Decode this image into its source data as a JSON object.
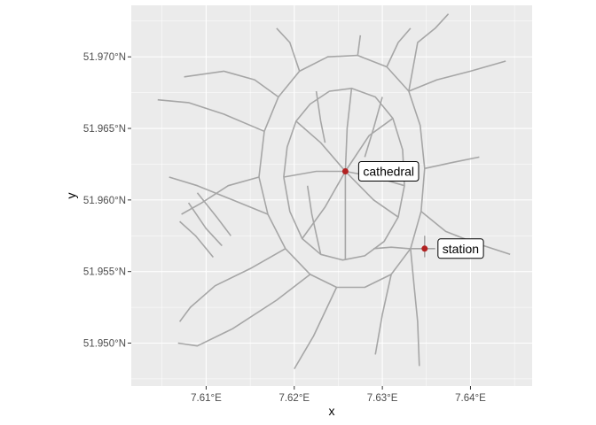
{
  "chart_data": {
    "type": "map",
    "xlabel": "x",
    "ylabel": "y",
    "xlim": [
      7.6015,
      7.647
    ],
    "ylim": [
      51.947,
      51.9736
    ],
    "x_ticks": [
      {
        "value": 7.61,
        "label": "7.61°E"
      },
      {
        "value": 7.62,
        "label": "7.62°E"
      },
      {
        "value": 7.63,
        "label": "7.63°E"
      },
      {
        "value": 7.64,
        "label": "7.64°E"
      }
    ],
    "y_ticks": [
      {
        "value": 51.95,
        "label": "51.950°N"
      },
      {
        "value": 51.955,
        "label": "51.955°N"
      },
      {
        "value": 51.96,
        "label": "51.960°N"
      },
      {
        "value": 51.965,
        "label": "51.965°N"
      },
      {
        "value": 51.97,
        "label": "51.970°N"
      }
    ],
    "grid": true,
    "panel_color": "#ebebeb",
    "grid_color": "#ffffff",
    "road_color": "#a6a6a6",
    "point_color": "#b22222",
    "points": [
      {
        "label": "cathedral",
        "lon": 7.6258,
        "lat": 51.962
      },
      {
        "label": "station",
        "lon": 7.6348,
        "lat": 51.9566
      }
    ],
    "roads": [
      [
        [
          7.6188,
          51.9616
        ],
        [
          7.6192,
          51.9637
        ],
        [
          7.6202,
          51.9655
        ],
        [
          7.6218,
          51.9667
        ],
        [
          7.624,
          51.9676
        ],
        [
          7.6265,
          51.9678
        ],
        [
          7.6292,
          51.9672
        ],
        [
          7.6312,
          51.9657
        ],
        [
          7.6323,
          51.9635
        ],
        [
          7.6325,
          51.961
        ],
        [
          7.6318,
          51.9588
        ],
        [
          7.6302,
          51.9571
        ],
        [
          7.628,
          51.9561
        ],
        [
          7.6255,
          51.9558
        ],
        [
          7.623,
          51.9562
        ],
        [
          7.6209,
          51.9573
        ],
        [
          7.6195,
          51.9592
        ],
        [
          7.6188,
          51.9616
        ]
      ],
      [
        [
          7.616,
          51.9616
        ],
        [
          7.6166,
          51.9648
        ],
        [
          7.6182,
          51.9672
        ],
        [
          7.6206,
          51.969
        ],
        [
          7.6238,
          51.97
        ],
        [
          7.6272,
          51.9701
        ],
        [
          7.6305,
          51.9693
        ],
        [
          7.633,
          51.9676
        ],
        [
          7.6343,
          51.9652
        ],
        [
          7.6348,
          51.9622
        ],
        [
          7.6344,
          51.9592
        ],
        [
          7.6332,
          51.9566
        ],
        [
          7.631,
          51.9548
        ],
        [
          7.628,
          51.9539
        ],
        [
          7.6248,
          51.9539
        ],
        [
          7.6218,
          51.9548
        ],
        [
          7.619,
          51.9566
        ],
        [
          7.617,
          51.959
        ],
        [
          7.616,
          51.9616
        ]
      ],
      [
        [
          7.633,
          51.9676
        ],
        [
          7.6362,
          51.9684
        ],
        [
          7.64,
          51.969
        ],
        [
          7.644,
          51.9697
        ]
      ],
      [
        [
          7.633,
          51.9676
        ],
        [
          7.634,
          51.971
        ],
        [
          7.636,
          51.972
        ],
        [
          7.6375,
          51.973
        ]
      ],
      [
        [
          7.6344,
          51.9592
        ],
        [
          7.6372,
          51.9578
        ],
        [
          7.6405,
          51.957
        ],
        [
          7.6445,
          51.9562
        ]
      ],
      [
        [
          7.6332,
          51.9566
        ],
        [
          7.6336,
          51.954
        ],
        [
          7.634,
          51.9515
        ],
        [
          7.6342,
          51.9484
        ]
      ],
      [
        [
          7.631,
          51.9548
        ],
        [
          7.63,
          51.952
        ],
        [
          7.6292,
          51.9492
        ]
      ],
      [
        [
          7.6248,
          51.9539
        ],
        [
          7.6222,
          51.9505
        ],
        [
          7.62,
          51.9482
        ]
      ],
      [
        [
          7.6218,
          51.9548
        ],
        [
          7.618,
          51.953
        ],
        [
          7.613,
          51.951
        ],
        [
          7.609,
          51.9498
        ],
        [
          7.6068,
          51.95
        ]
      ],
      [
        [
          7.619,
          51.9566
        ],
        [
          7.615,
          51.9552
        ],
        [
          7.611,
          51.954
        ],
        [
          7.6082,
          51.9525
        ],
        [
          7.607,
          51.9515
        ]
      ],
      [
        [
          7.617,
          51.959
        ],
        [
          7.613,
          51.96
        ],
        [
          7.609,
          51.961
        ],
        [
          7.6058,
          51.9616
        ]
      ],
      [
        [
          7.6166,
          51.9648
        ],
        [
          7.612,
          51.966
        ],
        [
          7.608,
          51.9668
        ],
        [
          7.6045,
          51.967
        ]
      ],
      [
        [
          7.6182,
          51.9672
        ],
        [
          7.6155,
          51.9684
        ],
        [
          7.612,
          51.969
        ],
        [
          7.6075,
          51.9686
        ]
      ],
      [
        [
          7.6206,
          51.969
        ],
        [
          7.6195,
          51.971
        ],
        [
          7.618,
          51.972
        ]
      ],
      [
        [
          7.6272,
          51.9701
        ],
        [
          7.6275,
          51.9715
        ]
      ],
      [
        [
          7.6305,
          51.9693
        ],
        [
          7.6318,
          51.971
        ],
        [
          7.6332,
          51.972
        ]
      ],
      [
        [
          7.6348,
          51.9622
        ],
        [
          7.6378,
          51.9626
        ],
        [
          7.641,
          51.963
        ]
      ],
      [
        [
          7.616,
          51.9616
        ],
        [
          7.6125,
          51.961
        ],
        [
          7.6095,
          51.9598
        ],
        [
          7.6072,
          51.959
        ]
      ],
      [
        [
          7.6188,
          51.9616
        ],
        [
          7.6225,
          51.962
        ],
        [
          7.6258,
          51.962
        ],
        [
          7.6292,
          51.9616
        ],
        [
          7.6325,
          51.961
        ]
      ],
      [
        [
          7.6258,
          51.9558
        ],
        [
          7.6258,
          51.959
        ],
        [
          7.6258,
          51.962
        ],
        [
          7.626,
          51.965
        ],
        [
          7.6265,
          51.9678
        ]
      ],
      [
        [
          7.6202,
          51.9655
        ],
        [
          7.623,
          51.964
        ],
        [
          7.6258,
          51.962
        ],
        [
          7.629,
          51.96
        ],
        [
          7.6318,
          51.9588
        ]
      ],
      [
        [
          7.6209,
          51.9573
        ],
        [
          7.6235,
          51.9595
        ],
        [
          7.6258,
          51.962
        ],
        [
          7.6285,
          51.9645
        ],
        [
          7.6312,
          51.9657
        ]
      ],
      [
        [
          7.629,
          51.9566
        ],
        [
          7.631,
          51.9567
        ],
        [
          7.633,
          51.9566
        ],
        [
          7.6348,
          51.9566
        ],
        [
          7.636,
          51.9566
        ]
      ],
      [
        [
          7.6348,
          51.956
        ],
        [
          7.6348,
          51.9575
        ]
      ],
      [
        [
          7.607,
          51.9585
        ],
        [
          7.6088,
          51.9575
        ],
        [
          7.6108,
          51.956
        ]
      ],
      [
        [
          7.608,
          51.9598
        ],
        [
          7.61,
          51.958
        ],
        [
          7.6118,
          51.9568
        ]
      ],
      [
        [
          7.609,
          51.9605
        ],
        [
          7.6112,
          51.9588
        ],
        [
          7.6128,
          51.9575
        ]
      ],
      [
        [
          7.6225,
          51.9676
        ],
        [
          7.623,
          51.9655
        ],
        [
          7.6235,
          51.964
        ]
      ],
      [
        [
          7.63,
          51.9672
        ],
        [
          7.629,
          51.965
        ],
        [
          7.628,
          51.963
        ]
      ],
      [
        [
          7.623,
          51.9562
        ],
        [
          7.622,
          51.959
        ],
        [
          7.6215,
          51.961
        ]
      ]
    ]
  }
}
